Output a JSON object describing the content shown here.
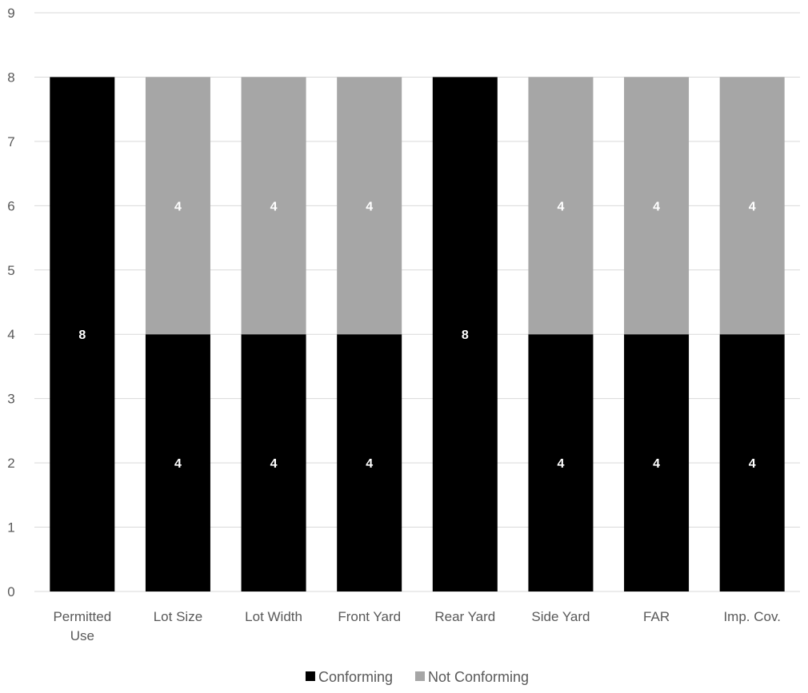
{
  "chart_data": {
    "type": "bar",
    "stacked": true,
    "categories": [
      [
        "Permitted",
        "Use"
      ],
      [
        "Lot Size"
      ],
      [
        "Lot Width"
      ],
      [
        "Front Yard"
      ],
      [
        "Rear Yard"
      ],
      [
        "Side Yard"
      ],
      [
        "FAR"
      ],
      [
        "Imp. Cov."
      ]
    ],
    "series": [
      {
        "name": "Conforming",
        "color": "#000000",
        "values": [
          8,
          4,
          4,
          4,
          8,
          4,
          4,
          4
        ]
      },
      {
        "name": "Not Conforming",
        "color": "#a6a6a6",
        "values": [
          0,
          4,
          4,
          4,
          0,
          4,
          4,
          4
        ]
      }
    ],
    "ylim": [
      0,
      9
    ],
    "yticks": [
      0,
      1,
      2,
      3,
      4,
      5,
      6,
      7,
      8,
      9
    ],
    "grid": true,
    "legend": "bottom",
    "title": "",
    "xlabel": "",
    "ylabel": ""
  }
}
